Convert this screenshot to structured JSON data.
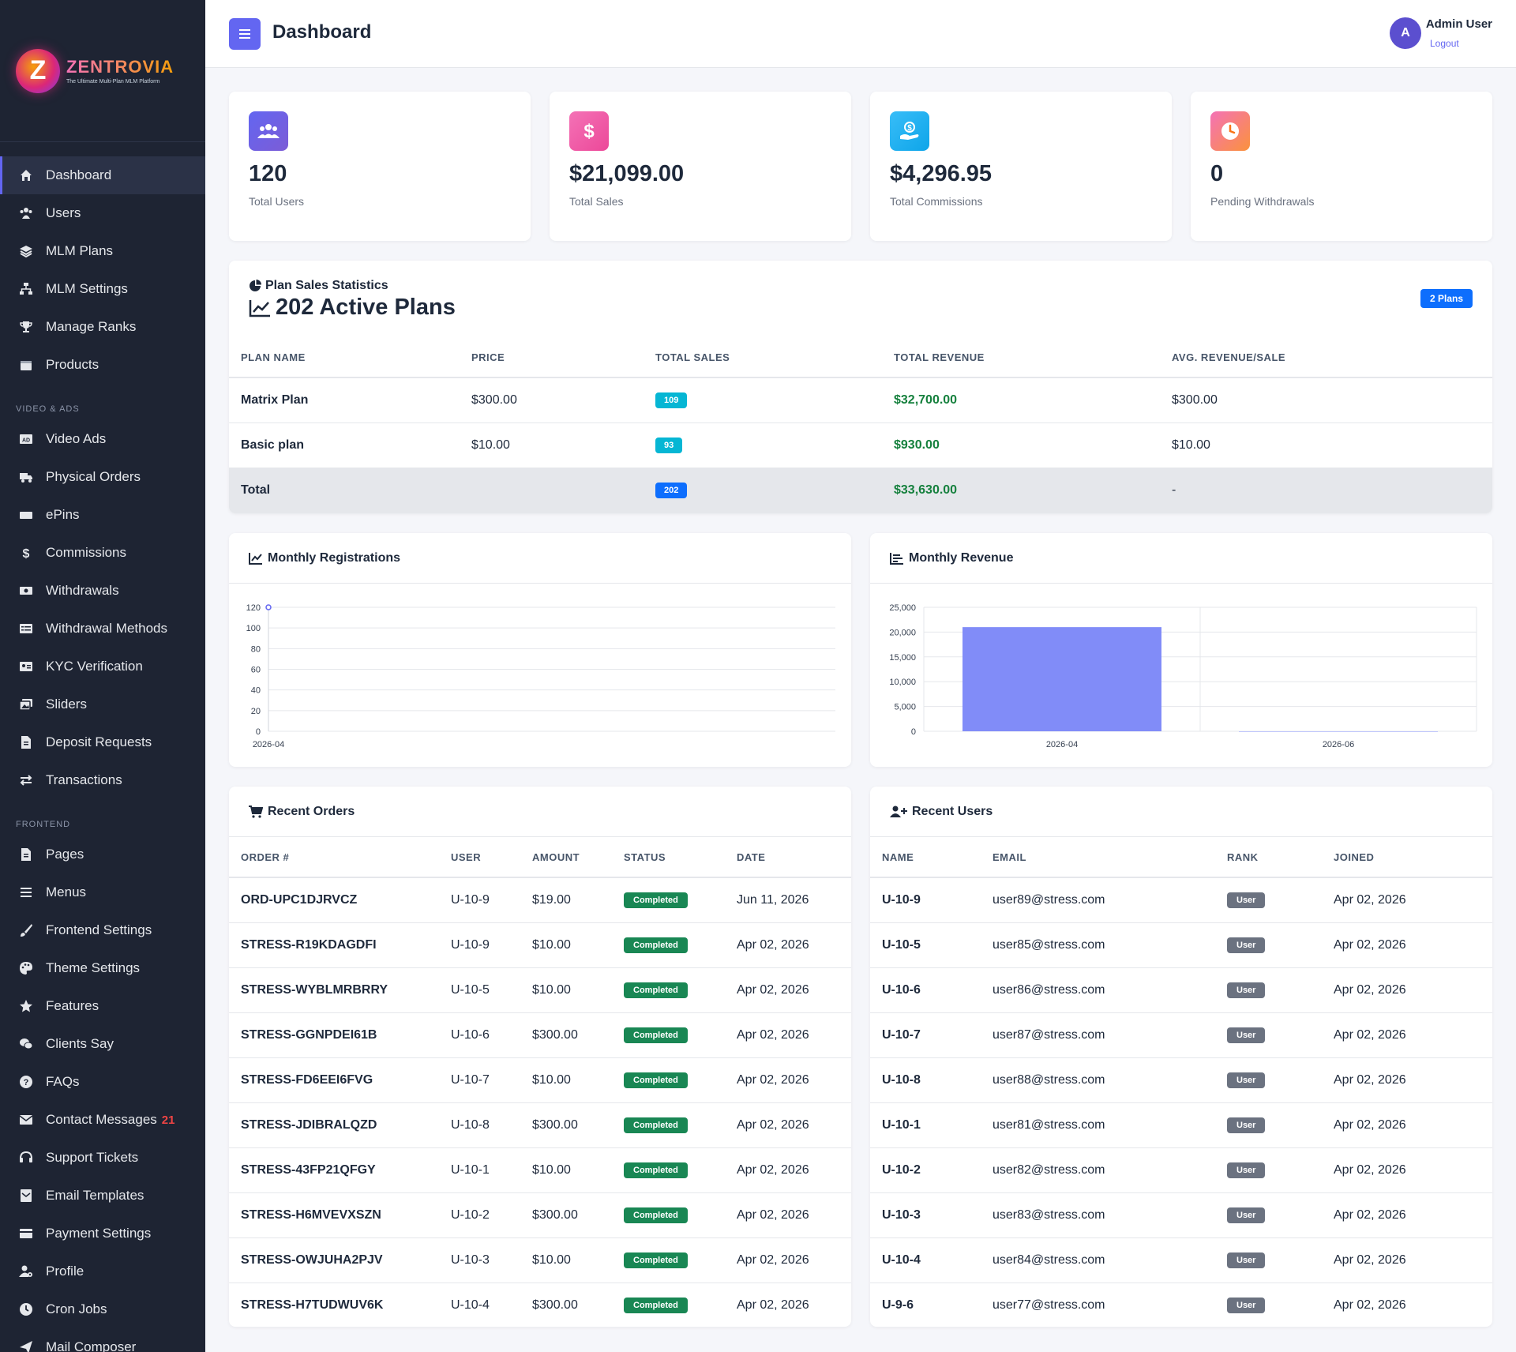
{
  "brand": {
    "name": "ZENTROVIA",
    "tagline": "The Ultimate Multi-Plan MLM Platform",
    "letter": "Z"
  },
  "sidebar": {
    "items_top": [
      {
        "label": "Dashboard",
        "icon": "home-icon",
        "active": true
      },
      {
        "label": "Users",
        "icon": "users-icon"
      },
      {
        "label": "MLM Plans",
        "icon": "layers-icon"
      },
      {
        "label": "MLM Settings",
        "icon": "sitemap-icon"
      },
      {
        "label": "Manage Ranks",
        "icon": "trophy-icon"
      },
      {
        "label": "Products",
        "icon": "box-icon"
      }
    ],
    "section_video": "VIDEO & ADS",
    "items_video": [
      {
        "label": "Video Ads",
        "icon": "ad-icon"
      },
      {
        "label": "Physical Orders",
        "icon": "truck-icon"
      },
      {
        "label": "ePins",
        "icon": "ticket-icon"
      },
      {
        "label": "Commissions",
        "icon": "dollar-icon"
      },
      {
        "label": "Withdrawals",
        "icon": "money-icon"
      },
      {
        "label": "Withdrawal Methods",
        "icon": "card-icon"
      },
      {
        "label": "KYC Verification",
        "icon": "id-card-icon"
      },
      {
        "label": "Sliders",
        "icon": "images-icon"
      },
      {
        "label": "Deposit Requests",
        "icon": "file-icon"
      },
      {
        "label": "Transactions",
        "icon": "exchange-icon"
      }
    ],
    "section_frontend": "FRONTEND",
    "items_frontend": [
      {
        "label": "Pages",
        "icon": "file-icon"
      },
      {
        "label": "Menus",
        "icon": "bars-icon"
      },
      {
        "label": "Frontend Settings",
        "icon": "brush-icon"
      },
      {
        "label": "Theme Settings",
        "icon": "palette-icon"
      },
      {
        "label": "Features",
        "icon": "star-icon"
      },
      {
        "label": "Clients Say",
        "icon": "comments-icon"
      },
      {
        "label": "FAQs",
        "icon": "question-icon"
      },
      {
        "label": "Contact Messages",
        "icon": "envelope-icon",
        "badge": "21"
      },
      {
        "label": "Support Tickets",
        "icon": "headset-icon"
      },
      {
        "label": "Email Templates",
        "icon": "mail-template-icon"
      },
      {
        "label": "Payment Settings",
        "icon": "credit-card-icon"
      },
      {
        "label": "Profile",
        "icon": "user-cog-icon"
      },
      {
        "label": "Cron Jobs",
        "icon": "clock-icon"
      },
      {
        "label": "Mail Composer",
        "icon": "paper-plane-icon"
      }
    ]
  },
  "header": {
    "title": "Dashboard",
    "avatar_letter": "A",
    "user_name": "Admin User",
    "logout": "Logout"
  },
  "stats": [
    {
      "value": "120",
      "label": "Total Users",
      "icon": "users-icon",
      "color": "#6366f1"
    },
    {
      "value": "$21,099.00",
      "label": "Total Sales",
      "icon": "dollar-icon",
      "color": "#ec4899"
    },
    {
      "value": "$4,296.95",
      "label": "Total Commissions",
      "icon": "hand-coin-icon",
      "color": "#0ea5e9"
    },
    {
      "value": "0",
      "label": "Pending Withdrawals",
      "icon": "clock-icon",
      "color": "#f97316"
    }
  ],
  "plan_stats": {
    "subtitle": "Plan Sales Statistics",
    "title": "202 Active Plans",
    "badge": "2 Plans",
    "columns": [
      "PLAN NAME",
      "PRICE",
      "TOTAL SALES",
      "TOTAL REVENUE",
      "AVG. REVENUE/SALE"
    ],
    "rows": [
      {
        "name": "Matrix Plan",
        "price": "$300.00",
        "sales": "109",
        "revenue": "$32,700.00",
        "avg": "$300.00"
      },
      {
        "name": "Basic plan",
        "price": "$10.00",
        "sales": "93",
        "revenue": "$930.00",
        "avg": "$10.00"
      }
    ],
    "total": {
      "name": "Total",
      "sales": "202",
      "revenue": "$33,630.00",
      "avg": "-"
    }
  },
  "registrations_chart": {
    "heading": "Monthly Registrations",
    "chart_data": {
      "type": "line",
      "title": "",
      "x": [
        "2026-04"
      ],
      "series": [
        {
          "values": [
            120
          ]
        }
      ],
      "ylim": [
        0,
        120
      ],
      "yticks": [
        0,
        20,
        40,
        60,
        80,
        100,
        120
      ],
      "grid": true,
      "color": "#6366f1"
    }
  },
  "revenue_chart": {
    "heading": "Monthly Revenue",
    "chart_data": {
      "type": "bar",
      "title": "",
      "categories": [
        "2026-04",
        "2026-06"
      ],
      "values": [
        21000,
        0
      ],
      "ylim": [
        0,
        25000
      ],
      "yticks": [
        "0",
        "5,000",
        "10,000",
        "15,000",
        "20,000",
        "25,000"
      ],
      "ytick_values": [
        0,
        5000,
        10000,
        15000,
        20000,
        25000
      ],
      "grid": true,
      "color": "#818cf8"
    }
  },
  "recent_orders": {
    "heading": "Recent Orders",
    "columns": [
      "ORDER #",
      "USER",
      "AMOUNT",
      "STATUS",
      "DATE"
    ],
    "rows": [
      {
        "order": "ORD-UPC1DJRVCZ",
        "user": "U-10-9",
        "amount": "$19.00",
        "status": "Completed",
        "date": "Jun 11, 2026"
      },
      {
        "order": "STRESS-R19KDAGDFI",
        "user": "U-10-9",
        "amount": "$10.00",
        "status": "Completed",
        "date": "Apr 02, 2026"
      },
      {
        "order": "STRESS-WYBLMRBRRY",
        "user": "U-10-5",
        "amount": "$10.00",
        "status": "Completed",
        "date": "Apr 02, 2026"
      },
      {
        "order": "STRESS-GGNPDEI61B",
        "user": "U-10-6",
        "amount": "$300.00",
        "status": "Completed",
        "date": "Apr 02, 2026"
      },
      {
        "order": "STRESS-FD6EEI6FVG",
        "user": "U-10-7",
        "amount": "$10.00",
        "status": "Completed",
        "date": "Apr 02, 2026"
      },
      {
        "order": "STRESS-JDIBRALQZD",
        "user": "U-10-8",
        "amount": "$300.00",
        "status": "Completed",
        "date": "Apr 02, 2026"
      },
      {
        "order": "STRESS-43FP21QFGY",
        "user": "U-10-1",
        "amount": "$10.00",
        "status": "Completed",
        "date": "Apr 02, 2026"
      },
      {
        "order": "STRESS-H6MVEVXSZN",
        "user": "U-10-2",
        "amount": "$300.00",
        "status": "Completed",
        "date": "Apr 02, 2026"
      },
      {
        "order": "STRESS-OWJUHA2PJV",
        "user": "U-10-3",
        "amount": "$10.00",
        "status": "Completed",
        "date": "Apr 02, 2026"
      },
      {
        "order": "STRESS-H7TUDWUV6K",
        "user": "U-10-4",
        "amount": "$300.00",
        "status": "Completed",
        "date": "Apr 02, 2026"
      }
    ]
  },
  "recent_users": {
    "heading": "Recent Users",
    "columns": [
      "NAME",
      "EMAIL",
      "RANK",
      "JOINED"
    ],
    "rows": [
      {
        "name": "U-10-9",
        "email": "user89@stress.com",
        "rank": "User",
        "joined": "Apr 02, 2026"
      },
      {
        "name": "U-10-5",
        "email": "user85@stress.com",
        "rank": "User",
        "joined": "Apr 02, 2026"
      },
      {
        "name": "U-10-6",
        "email": "user86@stress.com",
        "rank": "User",
        "joined": "Apr 02, 2026"
      },
      {
        "name": "U-10-7",
        "email": "user87@stress.com",
        "rank": "User",
        "joined": "Apr 02, 2026"
      },
      {
        "name": "U-10-8",
        "email": "user88@stress.com",
        "rank": "User",
        "joined": "Apr 02, 2026"
      },
      {
        "name": "U-10-1",
        "email": "user81@stress.com",
        "rank": "User",
        "joined": "Apr 02, 2026"
      },
      {
        "name": "U-10-2",
        "email": "user82@stress.com",
        "rank": "User",
        "joined": "Apr 02, 2026"
      },
      {
        "name": "U-10-3",
        "email": "user83@stress.com",
        "rank": "User",
        "joined": "Apr 02, 2026"
      },
      {
        "name": "U-10-4",
        "email": "user84@stress.com",
        "rank": "User",
        "joined": "Apr 02, 2026"
      },
      {
        "name": "U-9-6",
        "email": "user77@stress.com",
        "rank": "User",
        "joined": "Apr 02, 2026"
      }
    ]
  }
}
